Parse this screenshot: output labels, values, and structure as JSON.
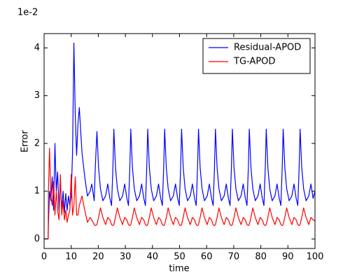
{
  "chart_data": {
    "type": "line",
    "xlabel": "time",
    "ylabel": "Error",
    "y_offset_text": "1e-2",
    "xlim": [
      0,
      100
    ],
    "ylim": [
      -0.2,
      4.3
    ],
    "xticks": [
      0,
      10,
      20,
      30,
      40,
      50,
      60,
      70,
      80,
      90,
      100
    ],
    "yticks": [
      0,
      1,
      2,
      3,
      4
    ],
    "legend": "upper right",
    "x": [
      0,
      1.5,
      1.6,
      2,
      2.5,
      3,
      3.5,
      4,
      4.5,
      5,
      5.5,
      6,
      6.5,
      7,
      7.5,
      8,
      8.5,
      9,
      9.5,
      10,
      10.5,
      11,
      11.5,
      12,
      12.5,
      13,
      14,
      15,
      16,
      17,
      17.6,
      18.5,
      18.9,
      19.5,
      20.1,
      20.8,
      21.7,
      22.7,
      23.5,
      24.3,
      24.9,
      25.4,
      25.75,
      26.35,
      27.05,
      27.95,
      28.95,
      29.75,
      30.55,
      31.15,
      31.65,
      32,
      32.6,
      33.3,
      34.2,
      35.2,
      36,
      36.8,
      37.4,
      37.9,
      38.25,
      38.85,
      39.55,
      40.45,
      41.45,
      42.25,
      43.05,
      43.65,
      44.15,
      44.5,
      45.1,
      45.8,
      46.7,
      47.7,
      48.5,
      49.3,
      49.9,
      50.4,
      50.75,
      51.35,
      52.05,
      52.95,
      53.95,
      54.75,
      55.55,
      56.15,
      56.65,
      57,
      57.6,
      58.3,
      59.2,
      60.2,
      61,
      61.8,
      62.4,
      62.9,
      63.25,
      63.85,
      64.55,
      65.45,
      66.45,
      67.25,
      68.05,
      68.65,
      69.15,
      69.5,
      70.1,
      70.8,
      71.7,
      72.7,
      73.5,
      74.3,
      74.9,
      75.4,
      75.75,
      76.35,
      77.05,
      77.95,
      78.95,
      79.75,
      80.55,
      81.15,
      81.65,
      82,
      82.6,
      83.3,
      84.2,
      85.2,
      86,
      86.8,
      87.4,
      87.9,
      88.25,
      88.85,
      89.55,
      90.45,
      91.45,
      92.25,
      93.05,
      93.65,
      94.15,
      94.5,
      95.1,
      95.8,
      96.7,
      97.7,
      98.5,
      99.3,
      100
    ],
    "series": [
      {
        "name": "Residual-APOD",
        "color": "#0000ff",
        "values": [
          0,
          0,
          0.3,
          1.0,
          0.8,
          1.3,
          0.6,
          2.0,
          1.0,
          1.4,
          0.6,
          1.2,
          0.6,
          1.0,
          0.55,
          0.95,
          0.6,
          0.9,
          0.7,
          0.9,
          1.8,
          4.1,
          2.6,
          1.75,
          2.4,
          2.75,
          1.8,
          1.3,
          0.9,
          1.0,
          1.15,
          0.8,
          1.5,
          2.25,
          1.5,
          1.05,
          0.8,
          0.9,
          1.15,
          0.85,
          0.7,
          1.5,
          2.3,
          1.5,
          1.05,
          0.8,
          0.9,
          1.15,
          0.85,
          0.7,
          1.5,
          2.3,
          1.5,
          1.05,
          0.8,
          0.9,
          1.15,
          0.85,
          0.7,
          1.5,
          2.3,
          1.5,
          1.05,
          0.8,
          0.9,
          1.15,
          0.85,
          0.7,
          1.5,
          2.3,
          1.5,
          1.05,
          0.8,
          0.9,
          1.15,
          0.85,
          0.7,
          1.5,
          2.3,
          1.5,
          1.05,
          0.8,
          0.9,
          1.15,
          0.85,
          0.7,
          1.5,
          2.3,
          1.5,
          1.05,
          0.8,
          0.9,
          1.15,
          0.85,
          0.7,
          1.5,
          2.3,
          1.5,
          1.05,
          0.8,
          0.9,
          1.15,
          0.85,
          0.7,
          1.5,
          2.3,
          1.5,
          1.05,
          0.8,
          0.9,
          1.15,
          0.85,
          0.7,
          1.5,
          2.3,
          1.5,
          1.05,
          0.8,
          0.9,
          1.15,
          0.85,
          0.7,
          1.5,
          2.3,
          1.5,
          1.05,
          0.8,
          0.9,
          1.15,
          0.85,
          0.7,
          1.5,
          2.3,
          1.5,
          1.05,
          0.8,
          0.9,
          1.15,
          0.85,
          0.7,
          1.5,
          2.3,
          1.5,
          1.05,
          0.8,
          0.9,
          1.15,
          0.85,
          1.0
        ]
      },
      {
        "name": "TG-APOD",
        "color": "#ff0000",
        "values": [
          0,
          0,
          1.0,
          1.9,
          0.9,
          0.7,
          1.2,
          0.5,
          1.0,
          0.6,
          0.4,
          1.35,
          0.5,
          0.8,
          0.4,
          0.6,
          0.35,
          0.5,
          0.6,
          1.35,
          0.5,
          0.7,
          1.3,
          0.5,
          0.5,
          0.7,
          0.9,
          0.6,
          0.35,
          0.45,
          0.4,
          0.3,
          0.28,
          0.3,
          0.45,
          0.65,
          0.45,
          0.3,
          0.45,
          0.4,
          0.3,
          0.28,
          0.3,
          0.45,
          0.65,
          0.45,
          0.3,
          0.45,
          0.4,
          0.3,
          0.28,
          0.3,
          0.45,
          0.65,
          0.45,
          0.3,
          0.45,
          0.4,
          0.3,
          0.28,
          0.3,
          0.45,
          0.65,
          0.45,
          0.3,
          0.45,
          0.4,
          0.3,
          0.28,
          0.3,
          0.45,
          0.65,
          0.45,
          0.3,
          0.45,
          0.4,
          0.3,
          0.28,
          0.3,
          0.45,
          0.65,
          0.45,
          0.3,
          0.45,
          0.4,
          0.3,
          0.28,
          0.3,
          0.45,
          0.65,
          0.45,
          0.3,
          0.45,
          0.4,
          0.3,
          0.28,
          0.3,
          0.45,
          0.65,
          0.45,
          0.3,
          0.45,
          0.4,
          0.3,
          0.28,
          0.3,
          0.45,
          0.65,
          0.45,
          0.3,
          0.45,
          0.4,
          0.3,
          0.28,
          0.3,
          0.45,
          0.65,
          0.45,
          0.3,
          0.45,
          0.4,
          0.3,
          0.28,
          0.3,
          0.45,
          0.65,
          0.45,
          0.3,
          0.45,
          0.4,
          0.3,
          0.28,
          0.3,
          0.45,
          0.65,
          0.45,
          0.3,
          0.45,
          0.4,
          0.3,
          0.28,
          0.3,
          0.45,
          0.65,
          0.45,
          0.3,
          0.45,
          0.4,
          0.38
        ]
      }
    ]
  }
}
